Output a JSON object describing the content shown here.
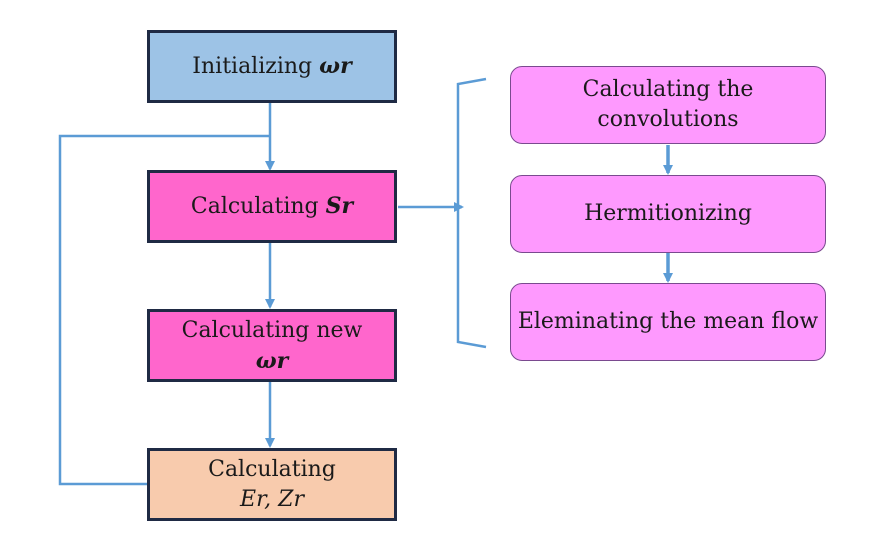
{
  "colors": {
    "init_fill": "#9dc3e6",
    "calc_fill": "#ff66cc",
    "energy_fill": "#f8cbad",
    "step_fill": "#fe99fe",
    "arrow": "#5b9bd5",
    "border": "#1f2a44"
  },
  "main_flow": {
    "initialize": {
      "text": "Initializing",
      "symbol": "ωr"
    },
    "calc_s": {
      "text": "Calculating",
      "symbol": "Sr"
    },
    "calc_new": {
      "line1": "Calculating new",
      "symbol": "ωr"
    },
    "calc_e": {
      "line1": "Calculating",
      "symbol": "Er, Zr"
    }
  },
  "sub_steps": {
    "convolutions": {
      "line1": "Calculating the",
      "line2": "convolutions"
    },
    "hermitionizing": {
      "text": "Hermitionizing"
    },
    "mean_flow": {
      "text": "Eleminating the mean flow"
    }
  }
}
